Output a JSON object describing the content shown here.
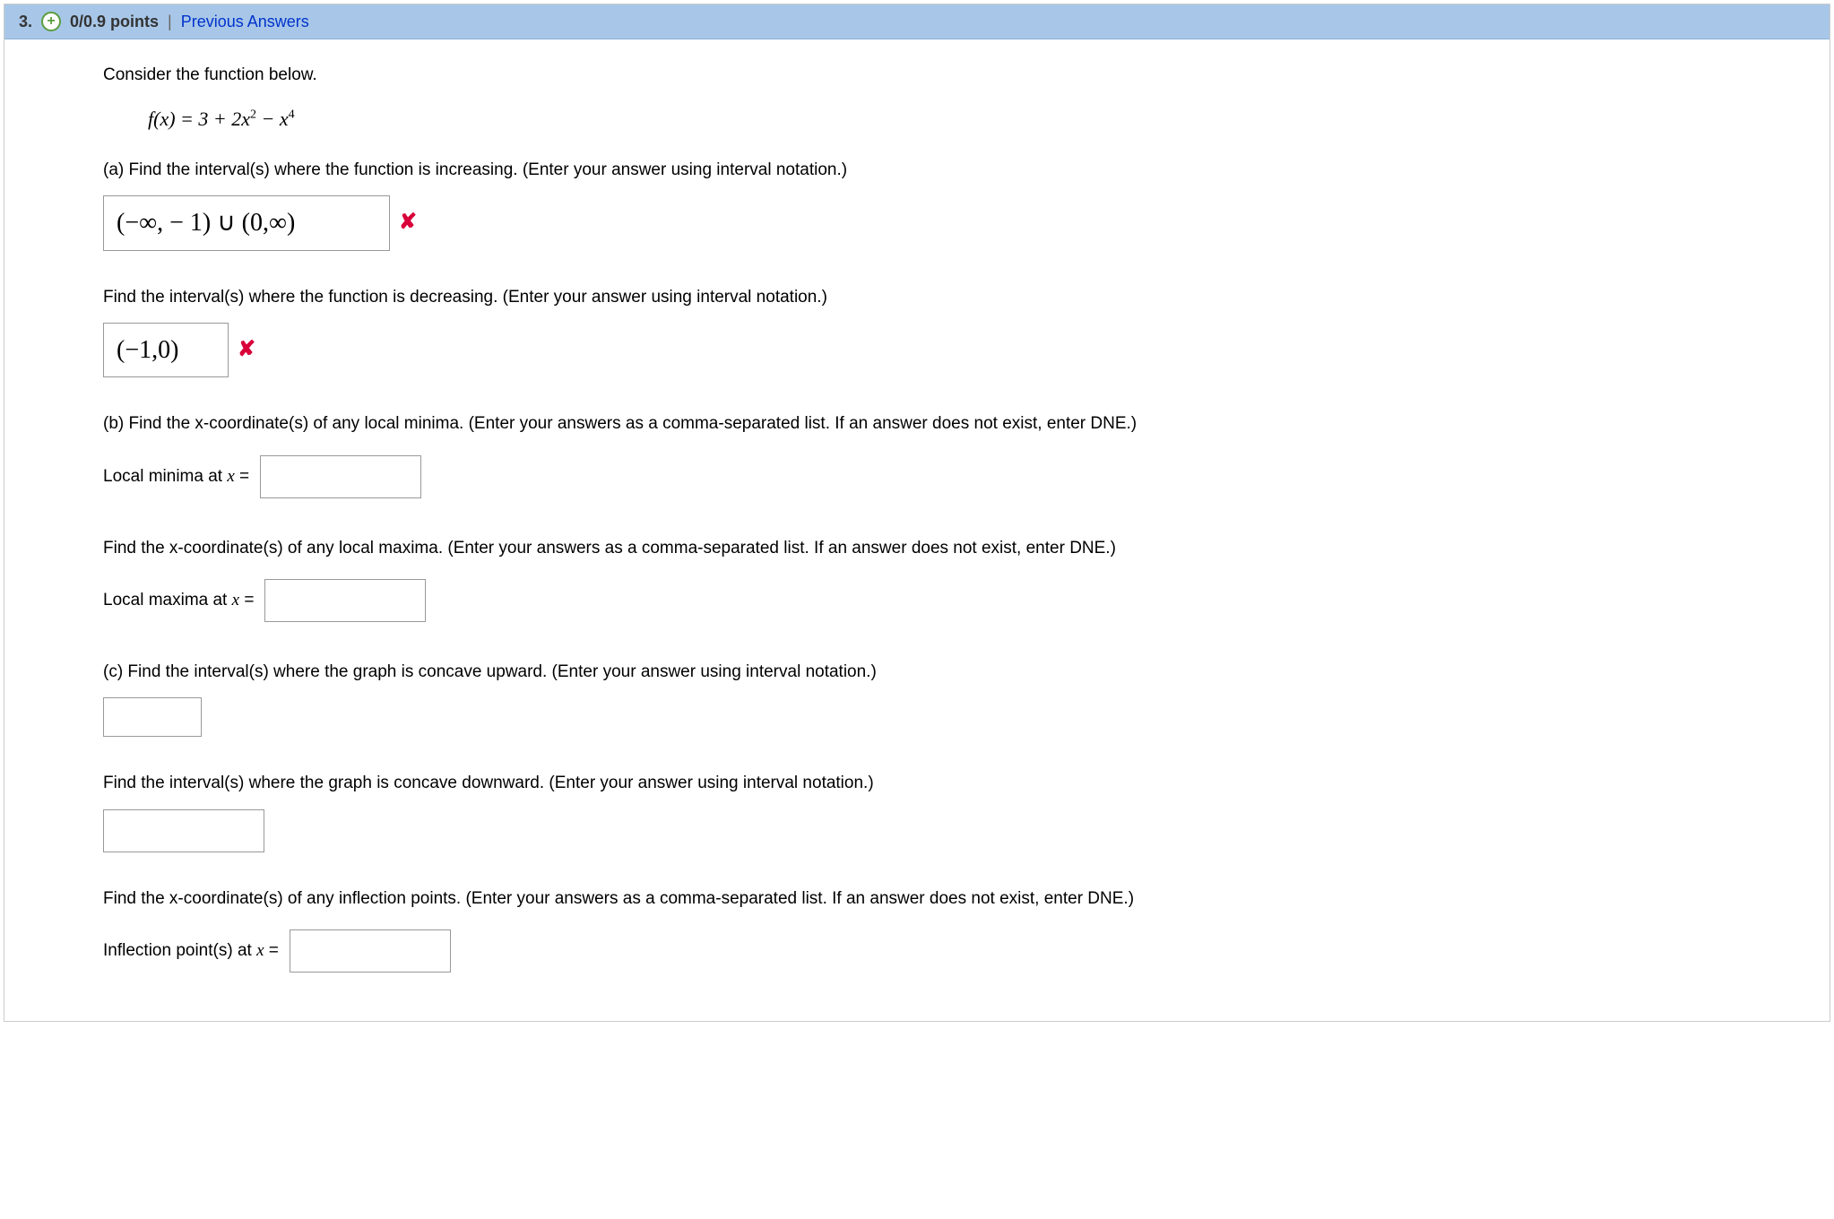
{
  "header": {
    "question_number": "3.",
    "points": "0/0.9 points",
    "previous_answers": "Previous Answers",
    "divider": "|"
  },
  "colors": {
    "header_bg": "#a8c7e8",
    "link": "#0033cc",
    "incorrect": "#d9003a",
    "expand_border": "#5a9e3e",
    "box_border": "#999999"
  },
  "intro": "Consider the function below.",
  "formula_plain": "f(x) = 3 + 2x² − x⁴",
  "parts": {
    "a1": {
      "prompt": "(a) Find the interval(s) where the function is increasing. (Enter your answer using interval notation.)",
      "answer": "(−∞, − 1) ∪ (0,∞)",
      "status": "incorrect"
    },
    "a2": {
      "prompt": "Find the interval(s) where the function is decreasing. (Enter your answer using interval notation.)",
      "answer": "(−1,0)",
      "status": "incorrect"
    },
    "b1": {
      "prompt": "(b) Find the x-coordinate(s) of any local minima. (Enter your answers as a comma-separated list. If an answer does not exist, enter DNE.)",
      "label": "Local minima at x =",
      "answer": ""
    },
    "b2": {
      "prompt": "Find the x-coordinate(s) of any local maxima. (Enter your answers as a comma-separated list. If an answer does not exist, enter DNE.)",
      "label": "Local maxima at x =",
      "answer": ""
    },
    "c1": {
      "prompt": "(c) Find the interval(s) where the graph is concave upward. (Enter your answer using interval notation.)",
      "answer": ""
    },
    "c2": {
      "prompt": "Find the interval(s) where the graph is concave downward. (Enter your answer using interval notation.)",
      "answer": ""
    },
    "c3": {
      "prompt": "Find the x-coordinate(s) of any inflection points. (Enter your answers as a comma-separated list. If an answer does not exist, enter DNE.)",
      "label": "Inflection point(s) at x =",
      "answer": ""
    }
  },
  "icons": {
    "incorrect_mark": "✘",
    "expand_plus": "+"
  }
}
